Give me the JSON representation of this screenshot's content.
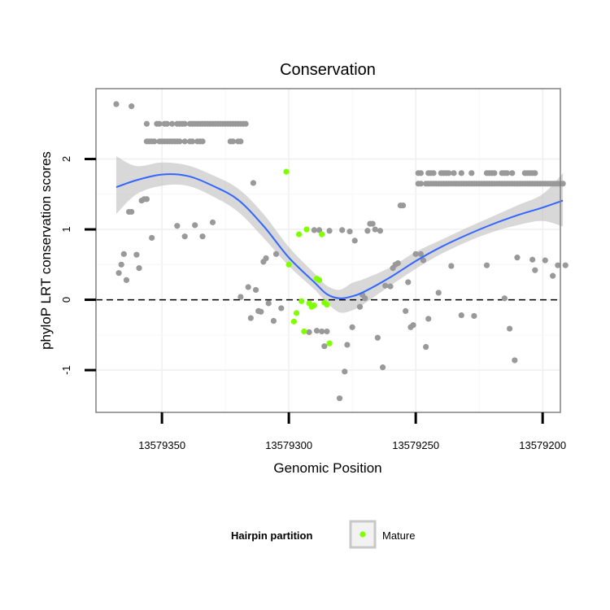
{
  "chart_data": {
    "type": "scatter",
    "title": "Conservation",
    "xlabel": "Genomic Position",
    "ylabel": "phyloP LRT conservation scores",
    "xlim": [
      13579376,
      13579193
    ],
    "x_reversed": true,
    "ylim": [
      -1.6,
      3.0
    ],
    "x_ticks": [
      13579350,
      13579300,
      13579250,
      13579200
    ],
    "x_tick_labels": [
      "13579350",
      "13579300",
      "13579250",
      "13579200"
    ],
    "y_ticks": [
      -1,
      0,
      1,
      2
    ],
    "y_tick_labels": [
      "-1",
      "0",
      "1",
      "2"
    ],
    "grid": true,
    "reference_line": {
      "y": 0,
      "style": "dashed"
    },
    "colors": {
      "other": "#999999",
      "mature": "#7fff00",
      "smooth": "#3366ff",
      "ribbon": "#bebebe"
    },
    "legend": {
      "title": "Hairpin partition",
      "position": "bottom",
      "entries": [
        {
          "label": "Mature",
          "color": "#7fff00"
        }
      ]
    },
    "series": [
      {
        "name": "Other",
        "points": [
          [
            13579368,
            2.78
          ],
          [
            13579362,
            2.75
          ],
          [
            13579367,
            0.38
          ],
          [
            13579366,
            0.5
          ],
          [
            13579365,
            0.65
          ],
          [
            13579364,
            0.28
          ],
          [
            13579363,
            1.25
          ],
          [
            13579362,
            1.25
          ],
          [
            13579360,
            0.64
          ],
          [
            13579359,
            0.45
          ],
          [
            13579358,
            1.41
          ],
          [
            13579357,
            1.43
          ],
          [
            13579356,
            1.43
          ],
          [
            13579354,
            0.88
          ],
          [
            13579344,
            1.05
          ],
          [
            13579341,
            0.9
          ],
          [
            13579337,
            1.06
          ],
          [
            13579334,
            0.9
          ],
          [
            13579330,
            1.1
          ],
          [
            13579319,
            0.04
          ],
          [
            13579316,
            0.18
          ],
          [
            13579315,
            -0.26
          ],
          [
            13579313,
            0.14
          ],
          [
            13579312,
            -0.16
          ],
          [
            13579311,
            -0.17
          ],
          [
            13579310,
            0.54
          ],
          [
            13579309,
            0.59
          ],
          [
            13579308,
            -0.05
          ],
          [
            13579306,
            -0.3
          ],
          [
            13579305,
            0.65
          ],
          [
            13579303,
            -0.12
          ],
          [
            13579314,
            1.66
          ],
          [
            13579292,
            -0.46
          ],
          [
            13579290,
            0.99
          ],
          [
            13579289,
            -0.44
          ],
          [
            13579288,
            0.99
          ],
          [
            13579287,
            -0.45
          ],
          [
            13579286,
            -0.66
          ],
          [
            13579285,
            -0.45
          ],
          [
            13579284,
            0.98
          ],
          [
            13579280,
            -1.4
          ],
          [
            13579279,
            0.99
          ],
          [
            13579278,
            -1.02
          ],
          [
            13579277,
            -0.64
          ],
          [
            13579276,
            0.97
          ],
          [
            13579275,
            -0.39
          ],
          [
            13579274,
            0.84
          ],
          [
            13579272,
            -0.1
          ],
          [
            13579271,
            0.07
          ],
          [
            13579270,
            0.02
          ],
          [
            13579269,
            0.98
          ],
          [
            13579268,
            1.08
          ],
          [
            13579267,
            1.08
          ],
          [
            13579266,
            1.0
          ],
          [
            13579265,
            -0.54
          ],
          [
            13579264,
            0.98
          ],
          [
            13579263,
            -0.96
          ],
          [
            13579262,
            0.2
          ],
          [
            13579260,
            0.19
          ],
          [
            13579259,
            0.45
          ],
          [
            13579258,
            0.5
          ],
          [
            13579257,
            0.52
          ],
          [
            13579256,
            1.34
          ],
          [
            13579255,
            1.34
          ],
          [
            13579254,
            -0.16
          ],
          [
            13579253,
            0.25
          ],
          [
            13579252,
            -0.39
          ],
          [
            13579251,
            -0.36
          ],
          [
            13579250,
            0.65
          ],
          [
            13579248,
            0.65
          ],
          [
            13579247,
            0.56
          ],
          [
            13579246,
            -0.67
          ],
          [
            13579245,
            -0.27
          ],
          [
            13579241,
            0.1
          ],
          [
            13579236,
            0.48
          ],
          [
            13579232,
            -0.22
          ],
          [
            13579227,
            -0.23
          ],
          [
            13579222,
            0.49
          ],
          [
            13579215,
            0.02
          ],
          [
            13579213,
            -0.41
          ],
          [
            13579211,
            -0.86
          ],
          [
            13579210,
            0.6
          ],
          [
            13579204,
            0.57
          ],
          [
            13579203,
            0.42
          ],
          [
            13579199,
            0.56
          ],
          [
            13579196,
            0.34
          ],
          [
            13579194,
            0.49
          ],
          [
            13579191,
            0.49
          ]
        ],
        "bands": [
          {
            "y": 2.5,
            "x": [
              13579356,
              13579352,
              13579351,
              13579349,
              13579348,
              13579346,
              13579344,
              13579343,
              13579342,
              13579341,
              13579339,
              13579338,
              13579337,
              13579336,
              13579335,
              13579334,
              13579333,
              13579332,
              13579331,
              13579330,
              13579329,
              13579328,
              13579327,
              13579326,
              13579325,
              13579324,
              13579323,
              13579322,
              13579321,
              13579320,
              13579319,
              13579318,
              13579317
            ]
          },
          {
            "y": 2.25,
            "x": [
              13579356,
              13579355,
              13579354,
              13579353,
              13579351,
              13579350,
              13579349,
              13579348,
              13579347,
              13579346,
              13579345,
              13579344,
              13579343,
              13579341,
              13579339,
              13579338,
              13579336,
              13579335,
              13579334,
              13579323,
              13579322,
              13579320,
              13579319
            ]
          },
          {
            "y": 1.8,
            "x": [
              13579249,
              13579248,
              13579245,
              13579244,
              13579243,
              13579240,
              13579239,
              13579238,
              13579237,
              13579235,
              13579232,
              13579228,
              13579222,
              13579221,
              13579220,
              13579219,
              13579216,
              13579215,
              13579214,
              13579212,
              13579207,
              13579206,
              13579205,
              13579204,
              13579203
            ]
          },
          {
            "y": 1.65,
            "x": [
              13579249,
              13579248,
              13579246,
              13579245,
              13579244,
              13579243,
              13579242,
              13579241,
              13579240,
              13579239,
              13579238,
              13579237,
              13579236,
              13579235,
              13579234,
              13579233,
              13579232,
              13579231,
              13579230,
              13579229,
              13579228,
              13579227,
              13579226,
              13579225,
              13579224,
              13579223,
              13579222,
              13579221,
              13579220,
              13579219,
              13579218,
              13579217,
              13579216,
              13579215,
              13579214,
              13579213,
              13579212,
              13579211,
              13579210,
              13579209,
              13579208,
              13579207,
              13579206,
              13579205,
              13579204,
              13579203,
              13579202,
              13579201,
              13579200,
              13579199,
              13579198,
              13579197,
              13579196,
              13579195,
              13579194,
              13579193,
              13579192
            ]
          }
        ]
      },
      {
        "name": "Mature",
        "points": [
          [
            13579301,
            1.82
          ],
          [
            13579300,
            0.5
          ],
          [
            13579298,
            -0.31
          ],
          [
            13579297,
            -0.19
          ],
          [
            13579296,
            0.93
          ],
          [
            13579295,
            -0.02
          ],
          [
            13579294,
            -0.45
          ],
          [
            13579293,
            1.0
          ],
          [
            13579292,
            -0.05
          ],
          [
            13579291,
            -0.1
          ],
          [
            13579290,
            -0.08
          ],
          [
            13579289,
            0.3
          ],
          [
            13579288,
            0.28
          ],
          [
            13579287,
            0.93
          ],
          [
            13579286,
            -0.04
          ],
          [
            13579285,
            -0.07
          ],
          [
            13579284,
            -0.62
          ]
        ]
      }
    ],
    "smooth": {
      "x": [
        13579368,
        13579360,
        13579350,
        13579340,
        13579330,
        13579320,
        13579310,
        13579300,
        13579290,
        13579285,
        13579280,
        13579275,
        13579270,
        13579260,
        13579250,
        13579240,
        13579230,
        13579220,
        13579210,
        13579200,
        13579192
      ],
      "y": [
        1.6,
        1.7,
        1.78,
        1.76,
        1.62,
        1.42,
        1.05,
        0.6,
        0.25,
        0.08,
        0.02,
        0.05,
        0.12,
        0.32,
        0.55,
        0.75,
        0.92,
        1.07,
        1.2,
        1.31,
        1.41
      ],
      "lower": [
        1.22,
        1.5,
        1.62,
        1.62,
        1.47,
        1.25,
        0.88,
        0.48,
        0.15,
        -0.04,
        -0.18,
        -0.15,
        -0.05,
        0.2,
        0.44,
        0.65,
        0.82,
        0.96,
        1.06,
        1.12,
        1.04
      ],
      "upper": [
        2.04,
        1.9,
        1.95,
        1.91,
        1.77,
        1.58,
        1.22,
        0.75,
        0.38,
        0.2,
        0.14,
        0.24,
        0.3,
        0.46,
        0.68,
        0.85,
        1.02,
        1.18,
        1.34,
        1.5,
        1.8
      ]
    }
  }
}
